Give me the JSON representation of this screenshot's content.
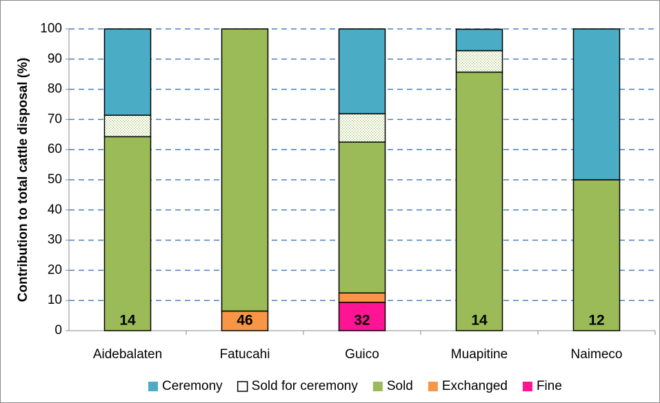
{
  "chart_data": {
    "type": "stacked_bar",
    "y_label": "Contribution to total cattle disposal (%)",
    "categories": [
      "Aidebalaten",
      "Fatucahi",
      "Guico",
      "Muapitine",
      "Naimeco"
    ],
    "series": [
      {
        "name": "Ceremony",
        "color": "#4bacc6",
        "values": [
          28.6,
          0,
          28.1,
          7.1,
          50
        ]
      },
      {
        "name": "Sold for ceremony",
        "color": "#ffffff",
        "pattern": "dotted",
        "values": [
          7.1,
          0,
          9.4,
          7.1,
          0
        ]
      },
      {
        "name": "Sold",
        "color": "#9bbb59",
        "values": [
          64.3,
          93.5,
          50,
          85.7,
          50
        ]
      },
      {
        "name": "Exchanged",
        "color": "#f79646",
        "values": [
          0,
          6.5,
          3.1,
          0,
          0
        ]
      },
      {
        "name": "Fine",
        "color": "#ff1493",
        "values": [
          0,
          0,
          9.4,
          0,
          0
        ]
      }
    ],
    "bar_labels": [
      14,
      46,
      32,
      14,
      12
    ],
    "ylim": [
      0,
      100
    ],
    "yticks": [
      0,
      10,
      20,
      30,
      40,
      50,
      60,
      70,
      80,
      90,
      100
    ],
    "grid": true,
    "legend": "bottom"
  }
}
